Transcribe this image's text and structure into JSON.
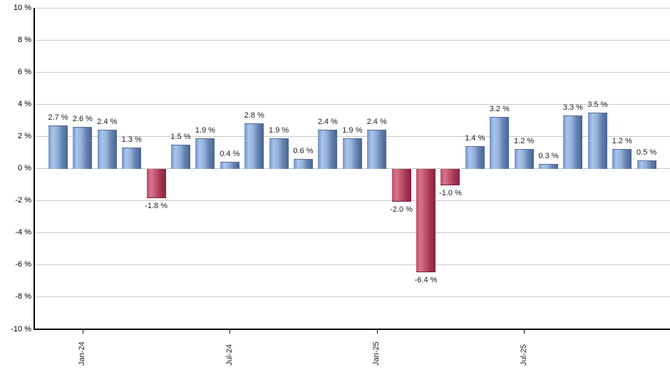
{
  "chart_data": {
    "type": "bar",
    "title": "",
    "xlabel": "",
    "ylabel": "",
    "grid": true,
    "legend": null,
    "ylim": [
      -10,
      10
    ],
    "y_tick_step": 2,
    "y_tick_labels": [
      "10 %",
      "8 %",
      "6 %",
      "4 %",
      "2 %",
      "0 %",
      "-2 %",
      "-4 %",
      "-6 %",
      "-8 %",
      "-10 %"
    ],
    "values": [
      2.7,
      2.6,
      2.4,
      1.3,
      -1.8,
      1.5,
      1.9,
      0.4,
      2.8,
      1.9,
      0.6,
      2.4,
      1.9,
      2.4,
      -2.0,
      -6.4,
      -1.0,
      1.4,
      3.2,
      1.2,
      0.3,
      3.3,
      3.5,
      1.2,
      0.5
    ],
    "bar_labels": [
      "2.7 %",
      "2.6 %",
      "2.4 %",
      "1.3 %",
      "-1.8 %",
      "1.5 %",
      "1.9 %",
      "0.4 %",
      "2.8 %",
      "1.9 %",
      "0.6 %",
      "2.4 %",
      "1.9 %",
      "2.4 %",
      "-2.0 %",
      "-6.4 %",
      "-1.0 %",
      "1.4 %",
      "3.2 %",
      "1.2 %",
      "0.3 %",
      "3.3 %",
      "3.5 %",
      "1.2 %",
      "0.5 %"
    ],
    "x_ticks": [
      {
        "bar_index": 1,
        "label": "Jan-24"
      },
      {
        "bar_index": 7,
        "label": "Jul-24"
      },
      {
        "bar_index": 13,
        "label": "Jan-25"
      },
      {
        "bar_index": 19,
        "label": "Jul-25"
      }
    ],
    "colors": {
      "positive_bar": "#7b9cd0",
      "negative_bar": "#c04e68",
      "gridline": "#c9c9c9",
      "axis": "#000000",
      "label_text": "#222222",
      "background": "#ffffff"
    }
  }
}
